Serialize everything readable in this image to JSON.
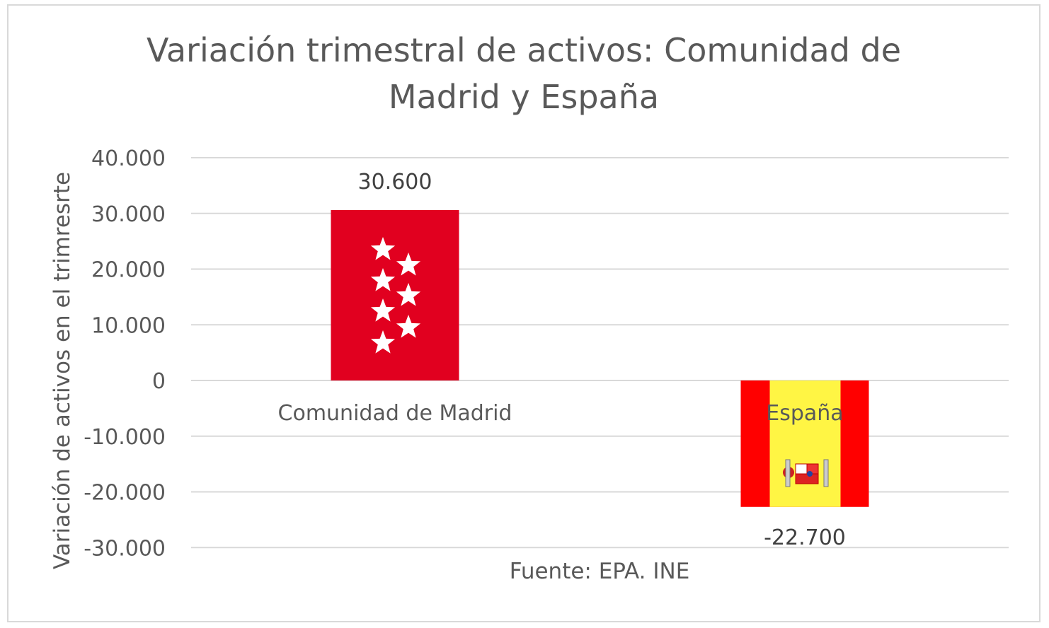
{
  "chart_data": {
    "type": "bar",
    "title": "Variación trimestral de activos: Comunidad de Madrid y España",
    "ylabel": "Variación de activos en el trimresrte",
    "xlabel": "Fuente: EPA. INE",
    "categories": [
      "Comunidad de Madrid",
      "España"
    ],
    "values": [
      30600,
      -22700
    ],
    "data_labels": [
      "30.600",
      "-22.700"
    ],
    "ylim": [
      -30000,
      40000
    ],
    "yticks": [
      40000,
      30000,
      20000,
      10000,
      0,
      -10000,
      -20000,
      -30000
    ],
    "ytick_labels": [
      "40.000",
      "30.000",
      "20.000",
      "10.000",
      "0",
      "-10.000",
      "-20.000",
      "-30.000"
    ],
    "grid": true,
    "bar_fills": [
      "flag-comunidad-de-madrid",
      "flag-espana"
    ],
    "colors": {
      "madrid_red": "#e1001f",
      "spain_red": "#ff0000",
      "spain_yellow": "#fff544",
      "grid": "#d9d9d9",
      "text": "#595959"
    }
  }
}
